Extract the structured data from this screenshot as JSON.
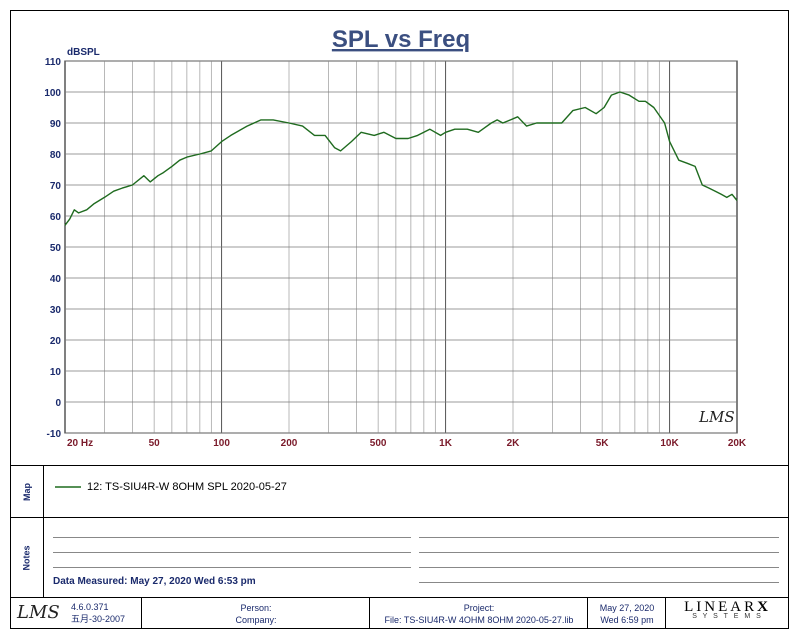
{
  "chart_data": {
    "type": "line",
    "title": "SPL vs Freq",
    "ylabel": "dBSPL",
    "xlabel": "",
    "xscale": "log",
    "xlim": [
      20,
      20000
    ],
    "ylim": [
      -10,
      110
    ],
    "grid": true,
    "line_color": "#1f6b1f",
    "x_tick_labels": [
      {
        "value": 20,
        "label": "20 Hz"
      },
      {
        "value": 50,
        "label": "50"
      },
      {
        "value": 100,
        "label": "100"
      },
      {
        "value": 200,
        "label": "200"
      },
      {
        "value": 500,
        "label": "500"
      },
      {
        "value": 1000,
        "label": "1K"
      },
      {
        "value": 2000,
        "label": "2K"
      },
      {
        "value": 5000,
        "label": "5K"
      },
      {
        "value": 10000,
        "label": "10K"
      },
      {
        "value": 20000,
        "label": "20K"
      }
    ],
    "y_ticks": [
      110,
      100,
      90,
      80,
      70,
      60,
      50,
      40,
      30,
      20,
      10,
      0,
      -10
    ],
    "series": [
      {
        "name": "12: TS-SIU4R-W  8OHM  SPL  2020-05-27",
        "x": [
          20,
          21,
          22,
          23,
          25,
          27,
          30,
          33,
          36,
          40,
          45,
          48,
          52,
          55,
          60,
          65,
          70,
          80,
          90,
          100,
          110,
          130,
          150,
          170,
          200,
          230,
          260,
          290,
          320,
          340,
          380,
          420,
          480,
          530,
          600,
          680,
          750,
          850,
          950,
          1000,
          1100,
          1250,
          1400,
          1600,
          1700,
          1800,
          1950,
          2100,
          2300,
          2550,
          2800,
          3000,
          3300,
          3700,
          4200,
          4700,
          5100,
          5500,
          6000,
          6600,
          7300,
          7800,
          8500,
          9500,
          10000,
          11000,
          12000,
          13000,
          14000,
          15000,
          16000,
          17000,
          18000,
          19000,
          20000
        ],
        "y": [
          57,
          59,
          62,
          61,
          62,
          64,
          66,
          68,
          69,
          70,
          73,
          71,
          73,
          74,
          76,
          78,
          79,
          80,
          81,
          84,
          86,
          89,
          91,
          91,
          90,
          89,
          86,
          86,
          82,
          81,
          84,
          87,
          86,
          87,
          85,
          85,
          86,
          88,
          86,
          87,
          88,
          88,
          87,
          90,
          91,
          90,
          91,
          92,
          89,
          90,
          90,
          90,
          90,
          94,
          95,
          93,
          95,
          99,
          100,
          99,
          97,
          97,
          95,
          90,
          84,
          78,
          77,
          76,
          70,
          69,
          68,
          67,
          66,
          67,
          65
        ]
      }
    ]
  },
  "logo_chart": "LMS",
  "map": {
    "label": "Map",
    "legend_text": "12: TS-SIU4R-W   8OHM  SPL  2020-05-27"
  },
  "notes": {
    "label": "Notes",
    "data_measured": "Data Measured: May 27, 2020  Wed  6:53 pm"
  },
  "footer": {
    "logo": "LMS",
    "version": "4.6.0.371",
    "version_date": "五月-30-2007",
    "person_label": "Person:",
    "company_label": "Company:",
    "project_label": "Project:",
    "file_text": "File: TS-SIU4R-W  4OHM    8OHM  2020-05-27.lib",
    "date": "May 27, 2020",
    "time": "Wed   6:59 pm",
    "brand": "LINEAR",
    "brand_x": "X",
    "brand_sub": "S Y S T E M S"
  }
}
